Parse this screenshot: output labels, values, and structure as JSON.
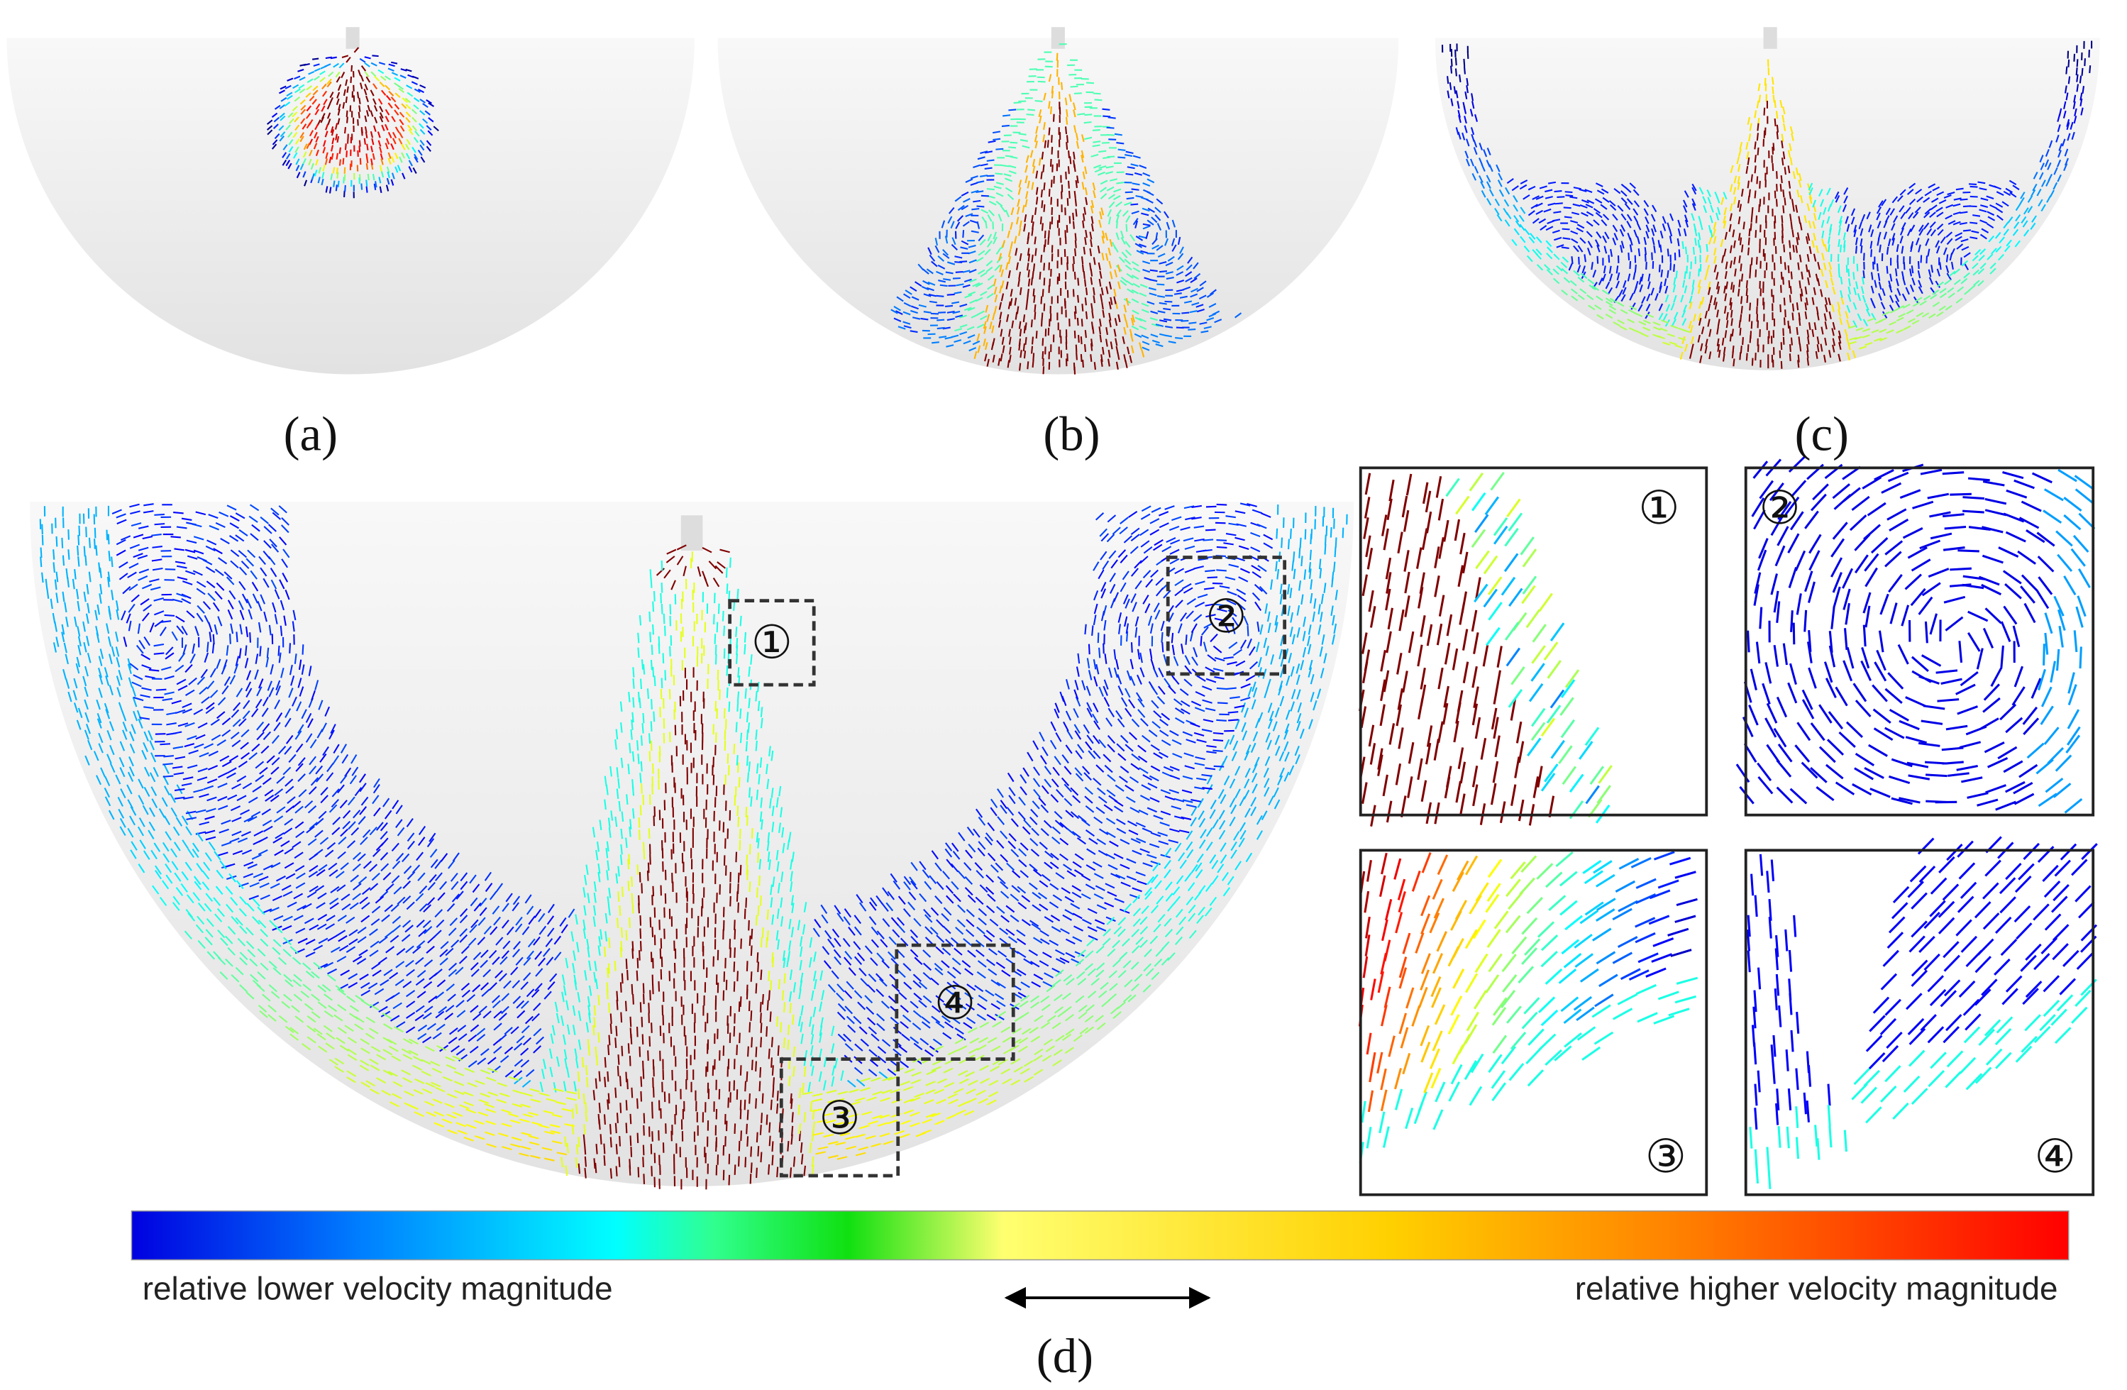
{
  "panels": [
    {
      "label": "(a)"
    },
    {
      "label": "(b)"
    },
    {
      "label": "(c)"
    },
    {
      "label": "(d)"
    }
  ],
  "colorbar": {
    "low_label": "relative lower velocity magnitude",
    "high_label": "relative higher velocity magnitude"
  },
  "callouts": [
    "①",
    "②",
    "③",
    "④"
  ]
}
